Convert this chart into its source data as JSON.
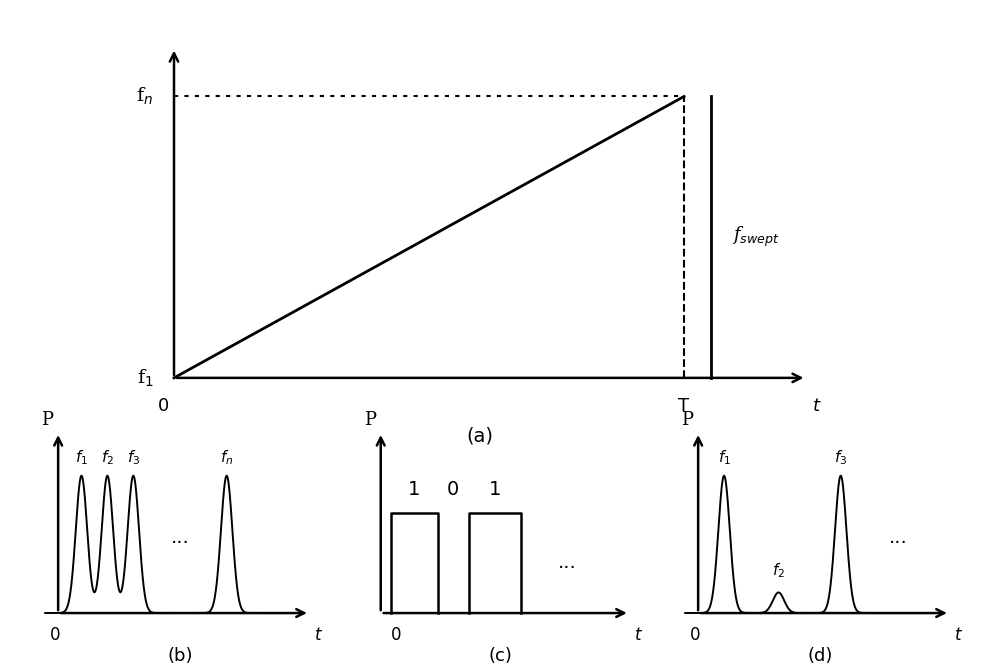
{
  "bg_color": "#ffffff",
  "line_color": "#000000",
  "panel_a": {
    "fn_label": "f$_n$",
    "f1_label": "f$_1$",
    "fswept_label": "f$_{swept}$",
    "T_label": "T",
    "t_label": "t",
    "zero_label": "0",
    "a_label": "(a)"
  },
  "panel_b": {
    "P_label": "P",
    "t_label": "t",
    "zero_label": "0",
    "b_label": "(b)",
    "f_labels": [
      "$f_1$",
      "$f_2$",
      "$f_3$",
      "$f_n$"
    ],
    "dots_label": "..."
  },
  "panel_c": {
    "P_label": "P",
    "t_label": "t",
    "zero_label": "0",
    "c_label": "(c)",
    "bit_labels": [
      "1",
      "0",
      "1"
    ],
    "dots_label": "..."
  },
  "panel_d": {
    "P_label": "P",
    "t_label": "t",
    "zero_label": "0",
    "d_label": "(d)",
    "f_labels": [
      "$f_1$",
      "$f_2$",
      "$f_3$"
    ],
    "dots_label": "..."
  }
}
